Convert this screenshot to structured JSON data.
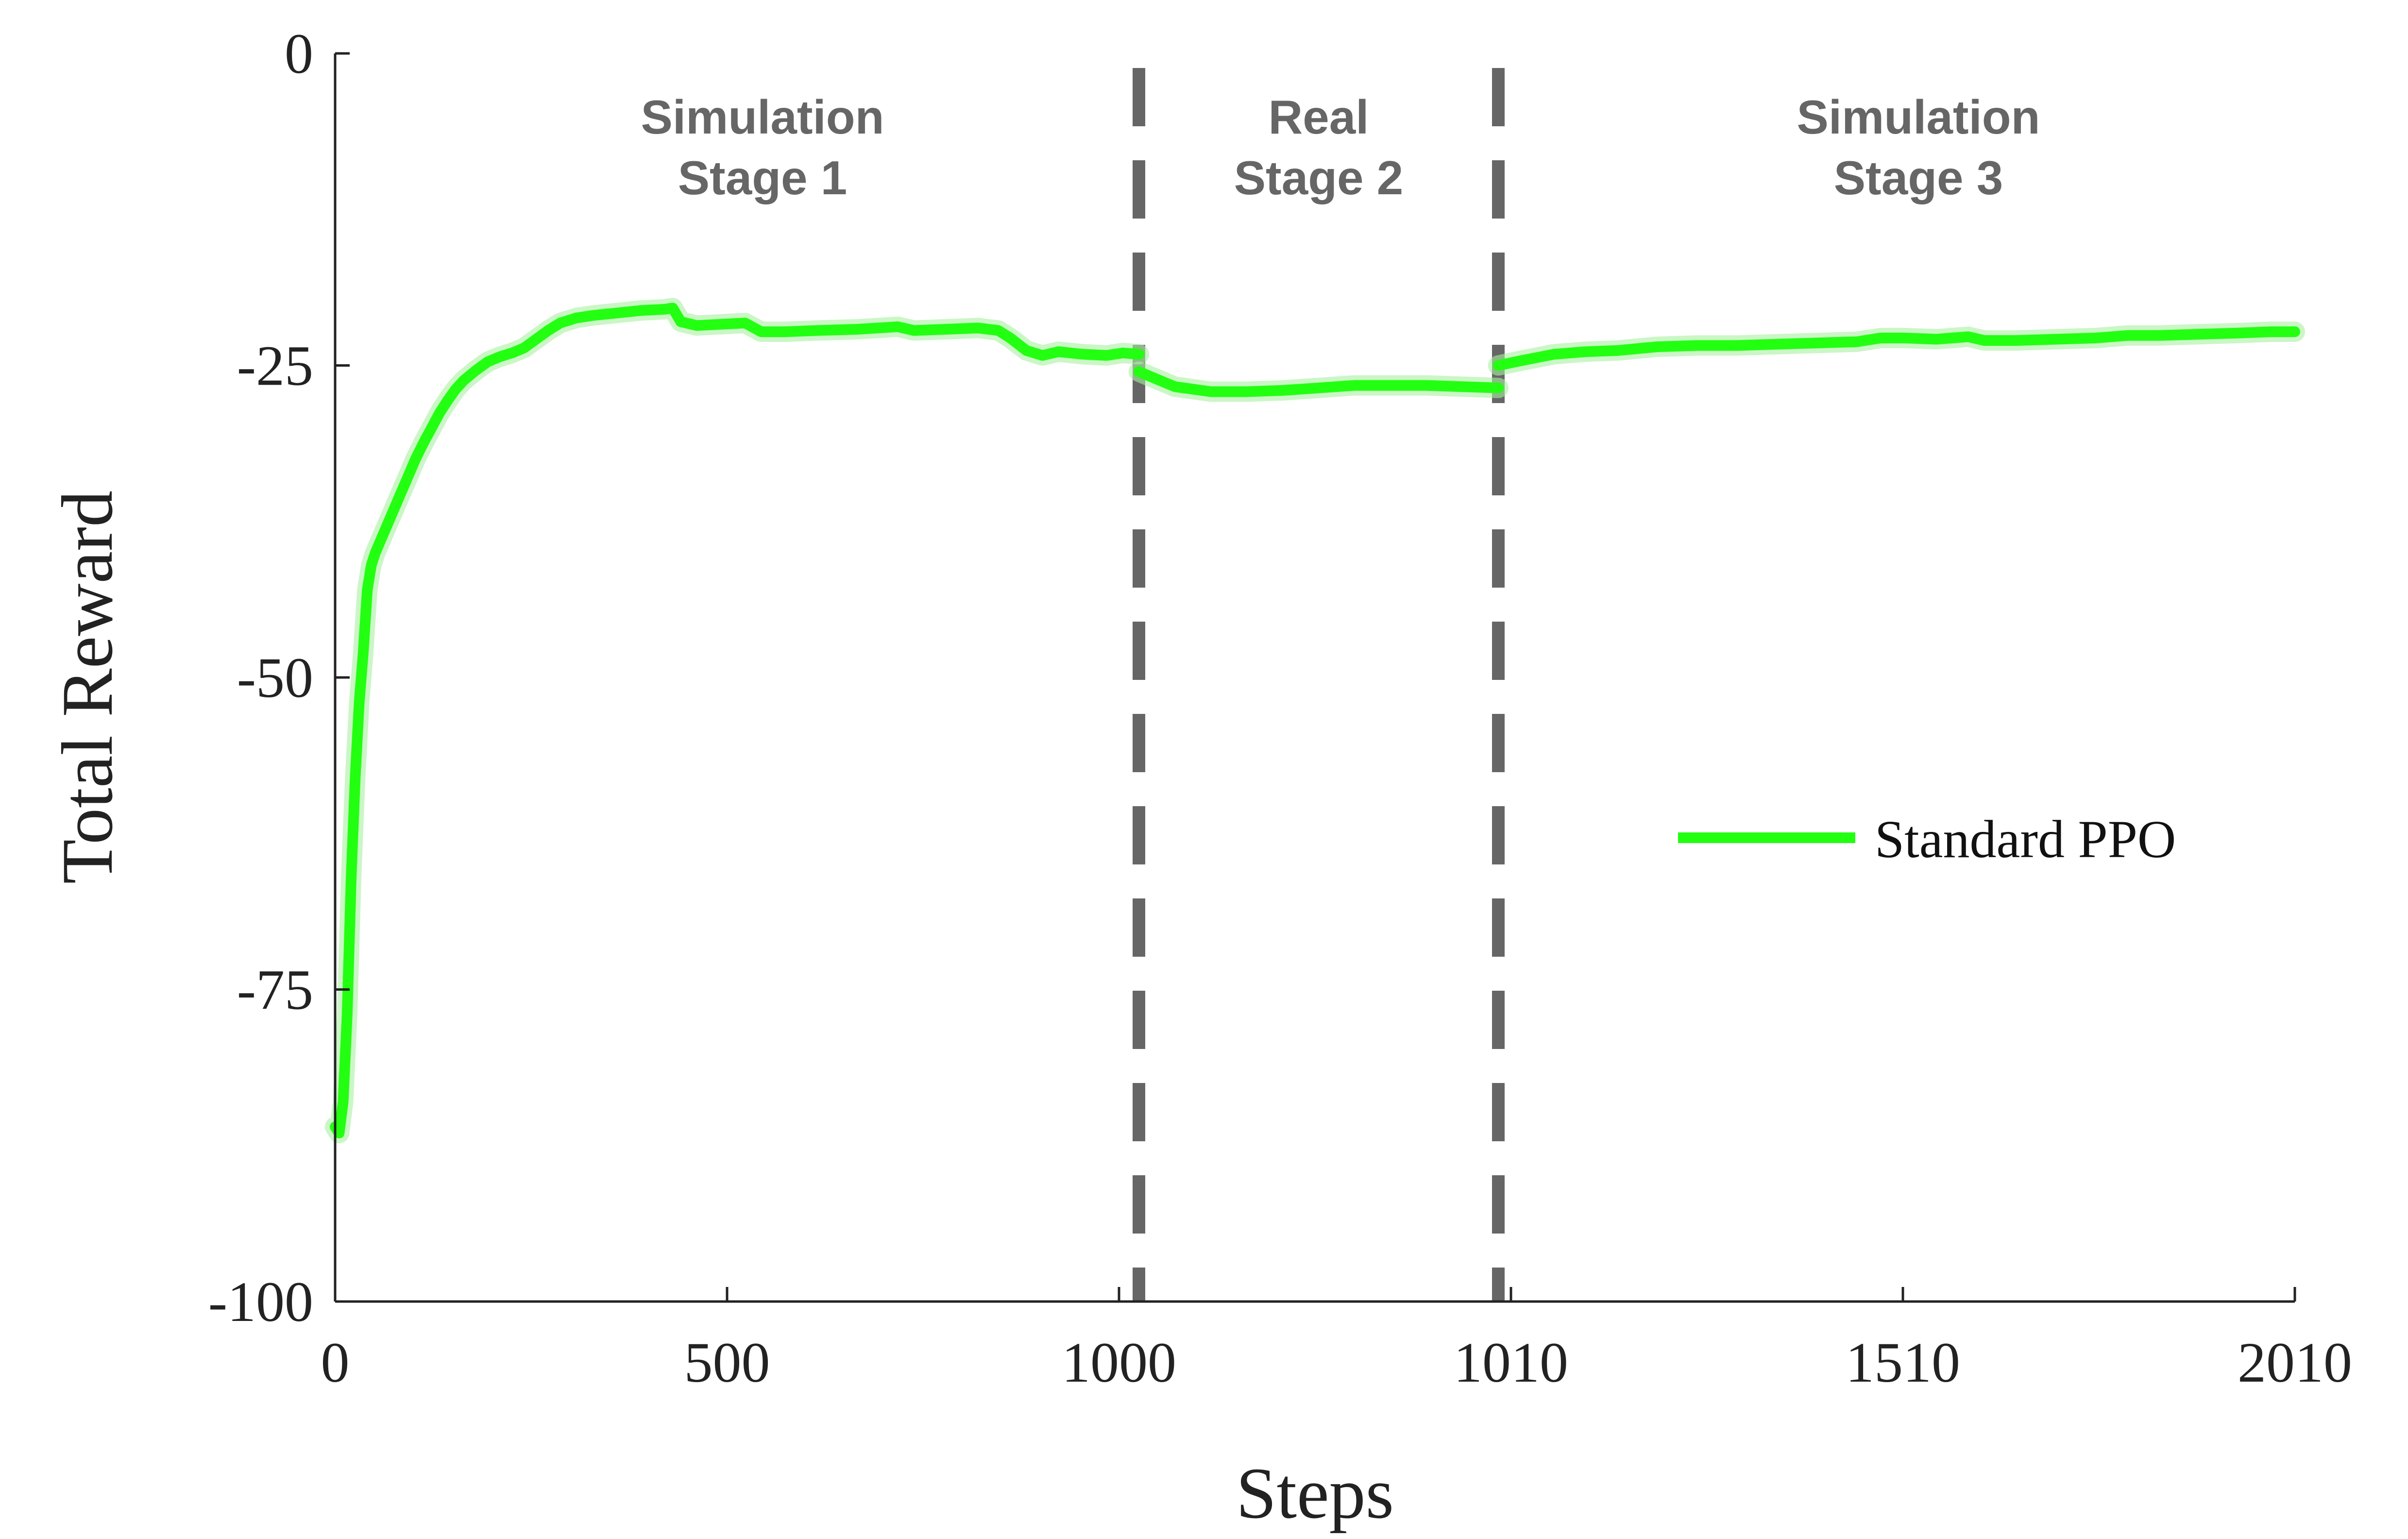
{
  "chart_data": {
    "type": "line",
    "xlabel": "Steps",
    "ylabel": "Total Reward",
    "ylim": [
      -100,
      0
    ],
    "x_ticks": [
      "0",
      "500",
      "1000",
      "1010",
      "1510",
      "2010"
    ],
    "y_ticks": [
      "0",
      "-25",
      "-50",
      "-75",
      "-100"
    ],
    "y_tick_values": [
      0,
      -25,
      -50,
      -75,
      -100
    ],
    "grid": false,
    "legend_position": "right-center",
    "stages": [
      {
        "line1": "Simulation",
        "line2": "Stage 1",
        "x_range": [
          0,
          1000
        ]
      },
      {
        "line1": "Real",
        "line2": "Stage 2",
        "x_range": [
          1000,
          1010
        ]
      },
      {
        "line1": "Simulation",
        "line2": "Stage 3",
        "x_range": [
          1010,
          2010
        ]
      }
    ],
    "stage_boundaries": [
      1000,
      1010
    ],
    "series": [
      {
        "name": "Standard PPO",
        "color": "#22ff11",
        "segments": [
          {
            "stage": 1,
            "points": [
              [
                0,
                -86
              ],
              [
                5,
                -86.5
              ],
              [
                10,
                -84
              ],
              [
                15,
                -77
              ],
              [
                20,
                -66
              ],
              [
                25,
                -58
              ],
              [
                30,
                -52
              ],
              [
                35,
                -48
              ],
              [
                40,
                -43
              ],
              [
                45,
                -41
              ],
              [
                50,
                -40
              ],
              [
                60,
                -38.5
              ],
              [
                70,
                -37
              ],
              [
                80,
                -35.5
              ],
              [
                90,
                -34
              ],
              [
                100,
                -32.5
              ],
              [
                110,
                -31.2
              ],
              [
                120,
                -30
              ],
              [
                130,
                -28.8
              ],
              [
                140,
                -27.8
              ],
              [
                150,
                -26.9
              ],
              [
                160,
                -26.2
              ],
              [
                175,
                -25.4
              ],
              [
                190,
                -24.7
              ],
              [
                205,
                -24.3
              ],
              [
                220,
                -24
              ],
              [
                235,
                -23.6
              ],
              [
                250,
                -22.9
              ],
              [
                265,
                -22.2
              ],
              [
                280,
                -21.6
              ],
              [
                300,
                -21.2
              ],
              [
                320,
                -21
              ],
              [
                350,
                -20.8
              ],
              [
                380,
                -20.6
              ],
              [
                410,
                -20.5
              ],
              [
                420,
                -20.4
              ],
              [
                430,
                -21.5
              ],
              [
                450,
                -21.8
              ],
              [
                480,
                -21.7
              ],
              [
                510,
                -21.6
              ],
              [
                530,
                -22.3
              ],
              [
                560,
                -22.3
              ],
              [
                600,
                -22.2
              ],
              [
                650,
                -22.1
              ],
              [
                700,
                -21.9
              ],
              [
                720,
                -22.2
              ],
              [
                760,
                -22.1
              ],
              [
                800,
                -22
              ],
              [
                825,
                -22.2
              ],
              [
                840,
                -22.8
              ],
              [
                860,
                -23.8
              ],
              [
                880,
                -24.2
              ],
              [
                900,
                -23.9
              ],
              [
                930,
                -24.1
              ],
              [
                960,
                -24.2
              ],
              [
                980,
                -24
              ],
              [
                1000,
                -24.1
              ]
            ]
          },
          {
            "stage": 2,
            "points": [
              [
                1000,
                -25.5
              ],
              [
                1001,
                -26.7
              ],
              [
                1002,
                -27.1
              ],
              [
                1003,
                -27.1
              ],
              [
                1004,
                -27
              ],
              [
                1005,
                -26.8
              ],
              [
                1006,
                -26.6
              ],
              [
                1007,
                -26.6
              ],
              [
                1008,
                -26.6
              ],
              [
                1009,
                -26.7
              ],
              [
                1010,
                -26.8
              ]
            ]
          },
          {
            "stage": 3,
            "points": [
              [
                1010,
                -25
              ],
              [
                1040,
                -24.6
              ],
              [
                1080,
                -24.1
              ],
              [
                1120,
                -23.9
              ],
              [
                1160,
                -23.8
              ],
              [
                1210,
                -23.5
              ],
              [
                1260,
                -23.4
              ],
              [
                1310,
                -23.4
              ],
              [
                1360,
                -23.3
              ],
              [
                1410,
                -23.2
              ],
              [
                1460,
                -23.1
              ],
              [
                1490,
                -22.8
              ],
              [
                1520,
                -22.8
              ],
              [
                1560,
                -22.9
              ],
              [
                1600,
                -22.7
              ],
              [
                1620,
                -23
              ],
              [
                1660,
                -23
              ],
              [
                1710,
                -22.9
              ],
              [
                1760,
                -22.8
              ],
              [
                1800,
                -22.6
              ],
              [
                1840,
                -22.6
              ],
              [
                1890,
                -22.5
              ],
              [
                1940,
                -22.4
              ],
              [
                1980,
                -22.3
              ],
              [
                2010,
                -22.3
              ]
            ]
          }
        ]
      }
    ]
  }
}
